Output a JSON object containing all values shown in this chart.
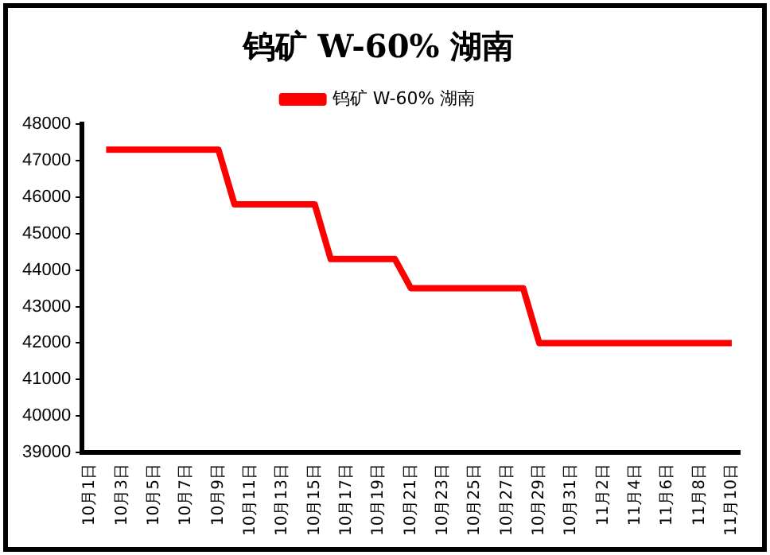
{
  "chart_data": {
    "type": "line",
    "title": "钨矿 W-60% 湖南",
    "categories": [
      "10月1日",
      null,
      "10月3日",
      null,
      "10月5日",
      null,
      "10月7日",
      null,
      "10月9日",
      null,
      "10月11日",
      null,
      "10月13日",
      null,
      "10月15日",
      null,
      "10月17日",
      null,
      "10月19日",
      null,
      "10月21日",
      null,
      "10月23日",
      null,
      "10月25日",
      null,
      "10月27日",
      null,
      "10月29日",
      null,
      "10月31日",
      null,
      "11月2日",
      null,
      "11月4日",
      null,
      "11月6日",
      null,
      "11月8日",
      null,
      "11月10日"
    ],
    "series": [
      {
        "name": "钨矿 W-60% 湖南",
        "color": "#ff0000",
        "values": [
          null,
          47300,
          47300,
          47300,
          47300,
          47300,
          47300,
          47300,
          47300,
          45800,
          45800,
          45800,
          45800,
          45800,
          45800,
          44300,
          44300,
          44300,
          44300,
          44300,
          43500,
          43500,
          43500,
          43500,
          43500,
          43500,
          43500,
          43500,
          42000,
          42000,
          42000,
          42000,
          42000,
          42000,
          42000,
          42000,
          42000,
          42000,
          42000,
          42000,
          42000
        ]
      }
    ],
    "ylim": [
      39000,
      48000
    ],
    "yticks": [
      39000,
      40000,
      41000,
      42000,
      43000,
      44000,
      45000,
      46000,
      47000,
      48000
    ],
    "grid": false,
    "legend": "top",
    "marker": "none",
    "line_style": "solid"
  }
}
